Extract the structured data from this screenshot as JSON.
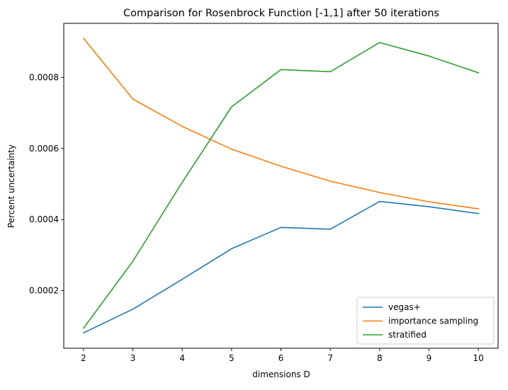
{
  "chart_data": {
    "type": "line",
    "title": "Comparison for Rosenbrock Function [-1,1] after 50 iterations",
    "xlabel": "dimensions D",
    "ylabel": "Percent uncertainty",
    "x": [
      2,
      3,
      4,
      5,
      6,
      7,
      8,
      9,
      10
    ],
    "xlim": [
      1.6,
      10.4
    ],
    "ylim": [
      3.8e-05,
      0.000952
    ],
    "xticks": [
      2,
      3,
      4,
      5,
      6,
      7,
      8,
      9,
      10
    ],
    "yticks": [
      0.0002,
      0.0004,
      0.0006,
      0.0008
    ],
    "ytick_labels": [
      "0.0002",
      "0.0004",
      "0.0006",
      "0.0008"
    ],
    "grid": false,
    "legend_position": "lower-right",
    "series": [
      {
        "name": "vegas+",
        "color": "#1f77b4",
        "values": [
          8.15e-05,
          0.000148,
          0.000232,
          0.000318,
          0.000378,
          0.000373,
          0.000451,
          0.000436,
          0.000417
        ]
      },
      {
        "name": "importance sampling",
        "color": "#ff7f0e",
        "values": [
          0.00091,
          0.000739,
          0.000662,
          0.000598,
          0.00055,
          0.000508,
          0.000476,
          0.00045,
          0.00043
        ]
      },
      {
        "name": "stratified",
        "color": "#2ca02c",
        "values": [
          9.45e-05,
          0.000283,
          0.000505,
          0.000717,
          0.000822,
          0.000816,
          0.000898,
          0.00086,
          0.000813
        ]
      }
    ]
  }
}
